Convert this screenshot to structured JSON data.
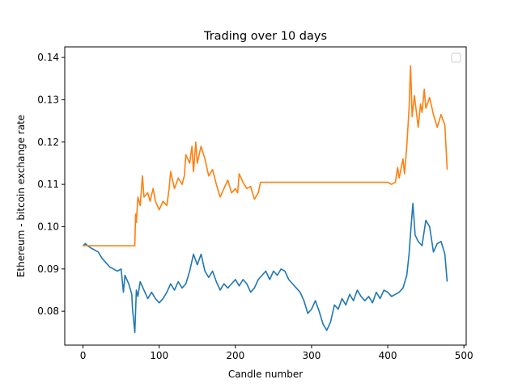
{
  "chart_data": {
    "type": "line",
    "title": "Trading over 10 days",
    "xlabel": "Candle number",
    "ylabel": "Ethereum - bitcoin exchange rate",
    "xlim": [
      -24,
      503
    ],
    "ylim": [
      0.072,
      0.1425
    ],
    "x_ticks": [
      0,
      100,
      200,
      300,
      400,
      500
    ],
    "y_ticks": [
      0.08,
      0.09,
      0.1,
      0.11,
      0.12,
      0.13,
      0.14
    ],
    "x_tick_labels": [
      "0",
      "100",
      "200",
      "300",
      "400",
      "500"
    ],
    "y_tick_labels": [
      "0.08",
      "0.09",
      "0.10",
      "0.11",
      "0.12",
      "0.13",
      "0.14"
    ],
    "grid": false,
    "legend": {
      "placement": "top-right",
      "entries": []
    },
    "series": [
      {
        "color": "#1f77b4",
        "x": [
          0,
          3,
          6,
          10,
          15,
          20,
          25,
          30,
          35,
          40,
          45,
          50,
          53,
          55,
          60,
          64,
          65,
          68,
          70,
          72,
          75,
          80,
          85,
          90,
          95,
          100,
          105,
          110,
          115,
          120,
          125,
          130,
          135,
          140,
          145,
          150,
          155,
          160,
          165,
          170,
          175,
          180,
          185,
          190,
          195,
          200,
          205,
          210,
          215,
          220,
          225,
          230,
          235,
          240,
          245,
          250,
          255,
          260,
          265,
          270,
          275,
          280,
          285,
          290,
          295,
          300,
          305,
          310,
          315,
          320,
          325,
          330,
          335,
          340,
          345,
          350,
          355,
          360,
          365,
          370,
          375,
          380,
          385,
          390,
          395,
          400,
          405,
          410,
          415,
          420,
          425,
          428,
          430,
          433,
          436,
          440,
          445,
          450,
          455,
          460,
          465,
          470,
          475,
          478
        ],
        "y": [
          0.0955,
          0.096,
          0.0955,
          0.095,
          0.0945,
          0.094,
          0.0925,
          0.0915,
          0.0905,
          0.09,
          0.0895,
          0.09,
          0.0845,
          0.0885,
          0.0865,
          0.084,
          0.0805,
          0.075,
          0.085,
          0.0835,
          0.087,
          0.085,
          0.083,
          0.0845,
          0.083,
          0.082,
          0.083,
          0.0845,
          0.0865,
          0.085,
          0.087,
          0.0855,
          0.0865,
          0.0895,
          0.0935,
          0.091,
          0.0935,
          0.0895,
          0.088,
          0.0895,
          0.087,
          0.085,
          0.0865,
          0.0855,
          0.0865,
          0.0875,
          0.086,
          0.0875,
          0.0865,
          0.0845,
          0.0855,
          0.0875,
          0.0885,
          0.0895,
          0.0875,
          0.0895,
          0.0885,
          0.09,
          0.0895,
          0.0875,
          0.0865,
          0.0855,
          0.0845,
          0.0825,
          0.0795,
          0.0805,
          0.0825,
          0.08,
          0.077,
          0.0755,
          0.0775,
          0.0815,
          0.0805,
          0.083,
          0.0815,
          0.084,
          0.0825,
          0.085,
          0.0835,
          0.0825,
          0.0835,
          0.082,
          0.0845,
          0.083,
          0.085,
          0.0845,
          0.0835,
          0.084,
          0.0845,
          0.0855,
          0.0885,
          0.0935,
          0.0985,
          0.1055,
          0.098,
          0.0965,
          0.0955,
          0.1015,
          0.1,
          0.094,
          0.096,
          0.0965,
          0.0935,
          0.087
        ]
      },
      {
        "color": "#ff7f0e",
        "x": [
          0,
          5,
          10,
          20,
          30,
          40,
          50,
          60,
          68,
          69,
          70,
          72,
          75,
          78,
          80,
          85,
          88,
          92,
          95,
          100,
          105,
          110,
          113,
          115,
          120,
          125,
          130,
          133,
          135,
          140,
          143,
          145,
          148,
          150,
          153,
          155,
          160,
          165,
          170,
          175,
          180,
          185,
          190,
          195,
          200,
          203,
          205,
          210,
          215,
          220,
          225,
          230,
          233,
          235,
          240,
          260,
          300,
          350,
          400,
          405,
          410,
          413,
          415,
          420,
          422,
          425,
          428,
          430,
          432,
          435,
          440,
          443,
          445,
          448,
          450,
          455,
          460,
          465,
          470,
          475,
          478
        ],
        "y": [
          0.0955,
          0.0955,
          0.0955,
          0.0955,
          0.0955,
          0.0955,
          0.0955,
          0.0955,
          0.0955,
          0.103,
          0.101,
          0.107,
          0.105,
          0.112,
          0.107,
          0.108,
          0.106,
          0.109,
          0.106,
          0.104,
          0.106,
          0.105,
          0.109,
          0.113,
          0.109,
          0.1115,
          0.11,
          0.112,
          0.117,
          0.115,
          0.119,
          0.113,
          0.12,
          0.115,
          0.1175,
          0.119,
          0.116,
          0.112,
          0.1135,
          0.11,
          0.107,
          0.109,
          0.111,
          0.108,
          0.109,
          0.108,
          0.1125,
          0.1105,
          0.109,
          0.1095,
          0.1065,
          0.108,
          0.1105,
          0.1105,
          0.1105,
          0.1105,
          0.1105,
          0.1105,
          0.1105,
          0.11,
          0.1105,
          0.114,
          0.1115,
          0.116,
          0.1125,
          0.119,
          0.128,
          0.138,
          0.126,
          0.131,
          0.1235,
          0.129,
          0.127,
          0.1325,
          0.128,
          0.1305,
          0.1265,
          0.1235,
          0.1265,
          0.124,
          0.1135
        ]
      }
    ]
  }
}
